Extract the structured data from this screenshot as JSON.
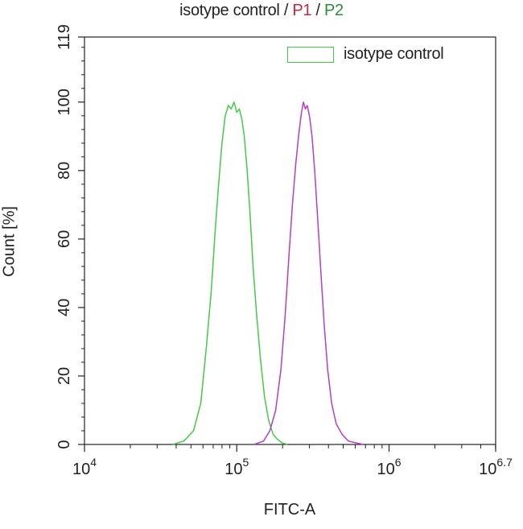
{
  "chart_data": {
    "type": "line",
    "title_parts": [
      {
        "text": "isotype control",
        "color": "#222222"
      },
      {
        "text": " / ",
        "color": "#222222"
      },
      {
        "text": "P1",
        "color": "#c8283c"
      },
      {
        "text": " / ",
        "color": "#222222"
      },
      {
        "text": "P2",
        "color": "#2e8b3c"
      }
    ],
    "xlabel": "FITC-A",
    "ylabel": "Count [%]",
    "x_scale": "log",
    "xlim": [
      10000,
      5011872
    ],
    "ylim": [
      0,
      119
    ],
    "x_ticks": [
      {
        "base": "10",
        "exp": "4",
        "value": 10000
      },
      {
        "base": "10",
        "exp": "5",
        "value": 100000
      },
      {
        "base": "10",
        "exp": "6",
        "value": 1000000
      },
      {
        "base": "10",
        "exp": "6.7",
        "value": 5011872
      }
    ],
    "y_ticks": [
      0,
      20,
      40,
      60,
      80,
      100,
      119
    ],
    "legend": {
      "position": "top-right",
      "entries": [
        {
          "label": "isotype control",
          "color": "#46c946"
        }
      ]
    },
    "grid": false,
    "series": [
      {
        "name": "isotype control",
        "color": "#46c946",
        "x": [
          38000,
          45000,
          52000,
          58000,
          63000,
          68000,
          72000,
          76000,
          80000,
          84000,
          88000,
          92000,
          96000,
          100000,
          104000,
          108000,
          112000,
          117000,
          122000,
          128000,
          135000,
          143000,
          152000,
          162000,
          173000,
          185000,
          198000,
          215000
        ],
        "y": [
          0,
          1,
          4,
          12,
          28,
          45,
          62,
          76,
          88,
          96,
          99,
          98,
          100,
          97,
          98,
          95,
          90,
          80,
          68,
          52,
          38,
          25,
          14,
          7,
          3,
          1.5,
          0.5,
          0
        ]
      },
      {
        "name": "P2",
        "color": "#b23ec9",
        "x": [
          130000,
          150000,
          165000,
          180000,
          195000,
          208000,
          220000,
          232000,
          244000,
          256000,
          266000,
          274000,
          282000,
          290000,
          300000,
          312000,
          325000,
          340000,
          357000,
          375000,
          395000,
          420000,
          450000,
          490000,
          540000,
          600000,
          680000
        ],
        "y": [
          0,
          1,
          4,
          10,
          22,
          38,
          55,
          70,
          82,
          91,
          97,
          100,
          98,
          99,
          96,
          90,
          80,
          66,
          50,
          35,
          22,
          12,
          6,
          3,
          1,
          0.5,
          0
        ]
      }
    ]
  }
}
